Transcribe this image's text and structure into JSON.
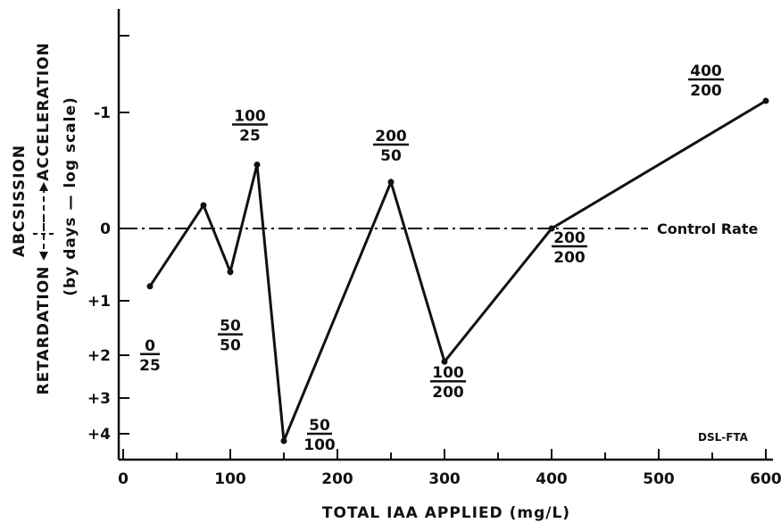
{
  "chart_data": {
    "type": "line",
    "title": "",
    "xlabel": "TOTAL IAA APPLIED (mg/L)",
    "ylabel": {
      "line1": "ABCSISSION",
      "line2_left": "RETARDATION",
      "line2_right": "ACCELERATION",
      "line3": "(by days — log scale)"
    },
    "xlim": [
      0,
      620
    ],
    "x_ticks": [
      0,
      100,
      200,
      300,
      400,
      500,
      600
    ],
    "y_ticks": [
      {
        "value": -1,
        "label": "-1"
      },
      {
        "value": 0,
        "label": "0"
      },
      {
        "value": 1,
        "label": "+1"
      },
      {
        "value": 2,
        "label": "+2"
      },
      {
        "value": 3,
        "label": "+3"
      },
      {
        "value": 4,
        "label": "+4"
      }
    ],
    "series": [
      {
        "points": [
          {
            "x": 25,
            "y": 0.8,
            "label_num": "0",
            "label_den": "25"
          },
          {
            "x": 75,
            "y": -0.2
          },
          {
            "x": 100,
            "y": 0.6,
            "label_num": "50",
            "label_den": "50"
          },
          {
            "x": 125,
            "y": -0.55,
            "label_num": "100",
            "label_den": "25"
          },
          {
            "x": 150,
            "y": 4.2,
            "label_num": "50",
            "label_den": "100"
          },
          {
            "x": 250,
            "y": -0.4,
            "label_num": "200",
            "label_den": "50"
          },
          {
            "x": 300,
            "y": 2.15,
            "label_num": "100",
            "label_den": "200"
          },
          {
            "x": 400,
            "y": 0,
            "label_num": "200",
            "label_den": "200"
          },
          {
            "x": 600,
            "y": -1.1,
            "label_num": "400",
            "label_den": "200"
          }
        ]
      }
    ],
    "reference_line": {
      "y": 0,
      "label": "Control Rate"
    },
    "credit": "DSL-FTA"
  }
}
